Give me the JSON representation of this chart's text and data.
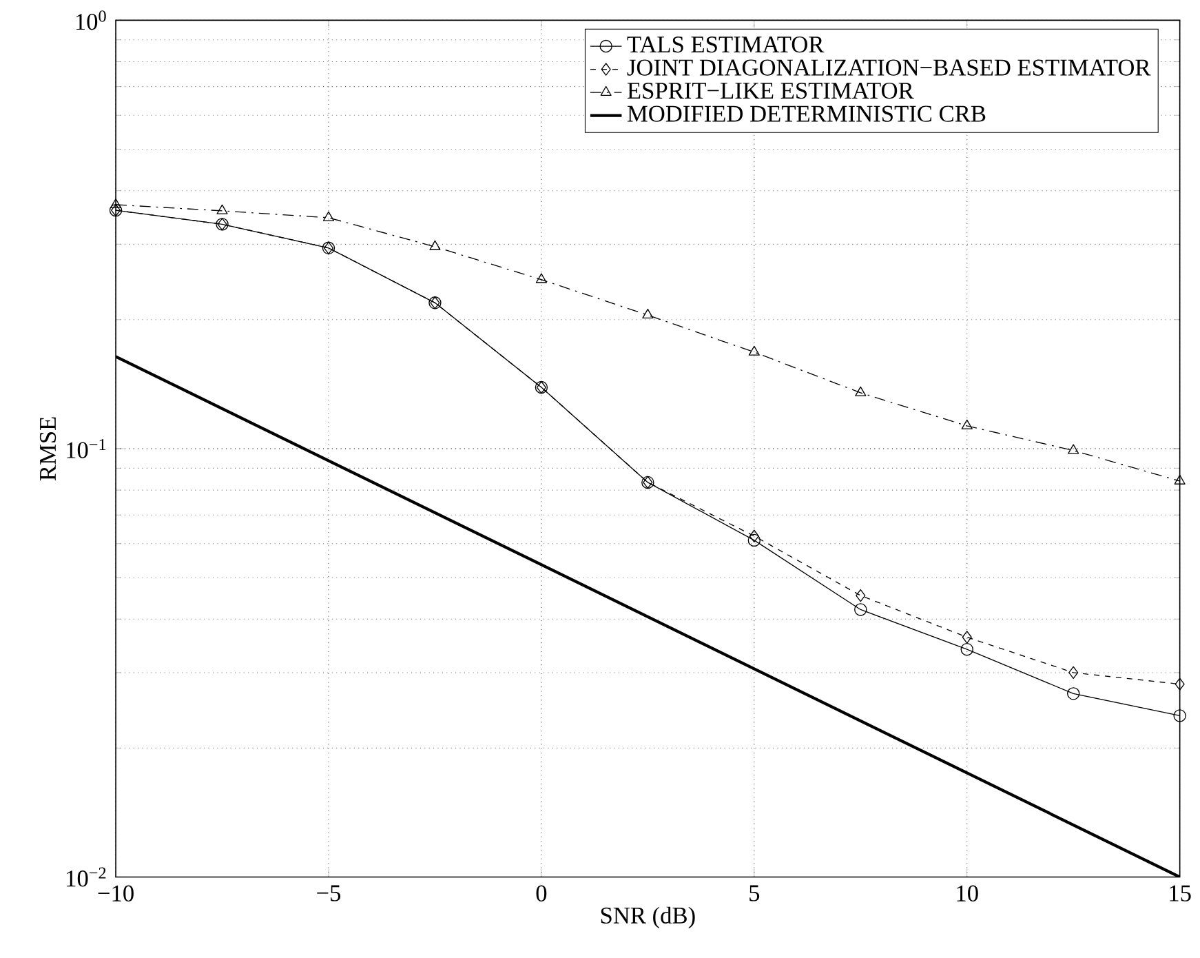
{
  "chart_data": {
    "type": "line",
    "xlabel": "SNR (dB)",
    "ylabel": "RMSE",
    "x": [
      -10,
      -7.5,
      -5,
      -2.5,
      0,
      2.5,
      5,
      7.5,
      10,
      12.5,
      15
    ],
    "series": [
      {
        "name": "TALS ESTIMATOR",
        "color": "#000000",
        "marker": "circle",
        "line_style": "solid",
        "values": [
          0.36,
          0.334,
          0.294,
          0.219,
          0.139,
          0.0834,
          0.0611,
          0.0421,
          0.034,
          0.0268,
          0.0238
        ]
      },
      {
        "name": "JOINT DIAGONALIZATION−BASED ESTIMATOR",
        "color": "#000000",
        "marker": "diamond",
        "line_style": "dashed",
        "values": [
          0.36,
          0.334,
          0.294,
          0.219,
          0.139,
          0.0834,
          0.0625,
          0.0454,
          0.0363,
          0.03,
          0.0282
        ]
      },
      {
        "name": "ESPRIT−LIKE ESTIMATOR",
        "color": "#000000",
        "marker": "triangle",
        "line_style": "dashdot",
        "values": [
          0.371,
          0.359,
          0.346,
          0.296,
          0.248,
          0.205,
          0.168,
          0.135,
          0.113,
          0.099,
          0.084
        ]
      },
      {
        "name": "MODIFIED DETERMINISTIC CRB",
        "color": "#000000",
        "marker": "none",
        "line_style": "solid",
        "x": [
          -10,
          15
        ],
        "values": [
          0.164,
          0.01
        ]
      }
    ],
    "log": "y",
    "grid": true,
    "legend": "top right",
    "xlim": [
      -10,
      15
    ],
    "ylim": [
      0.01,
      1
    ],
    "xticks": [
      {
        "value": -10,
        "label": "−10"
      },
      {
        "value": -5,
        "label": "−5"
      },
      0,
      5,
      10,
      15
    ],
    "yticks": [
      {
        "value": 0.01,
        "label": "10$^{−2}$"
      },
      {
        "value": 0.1,
        "label": "10$^{−1}$"
      },
      {
        "value": 1,
        "label": "10$^{0}$"
      }
    ]
  }
}
